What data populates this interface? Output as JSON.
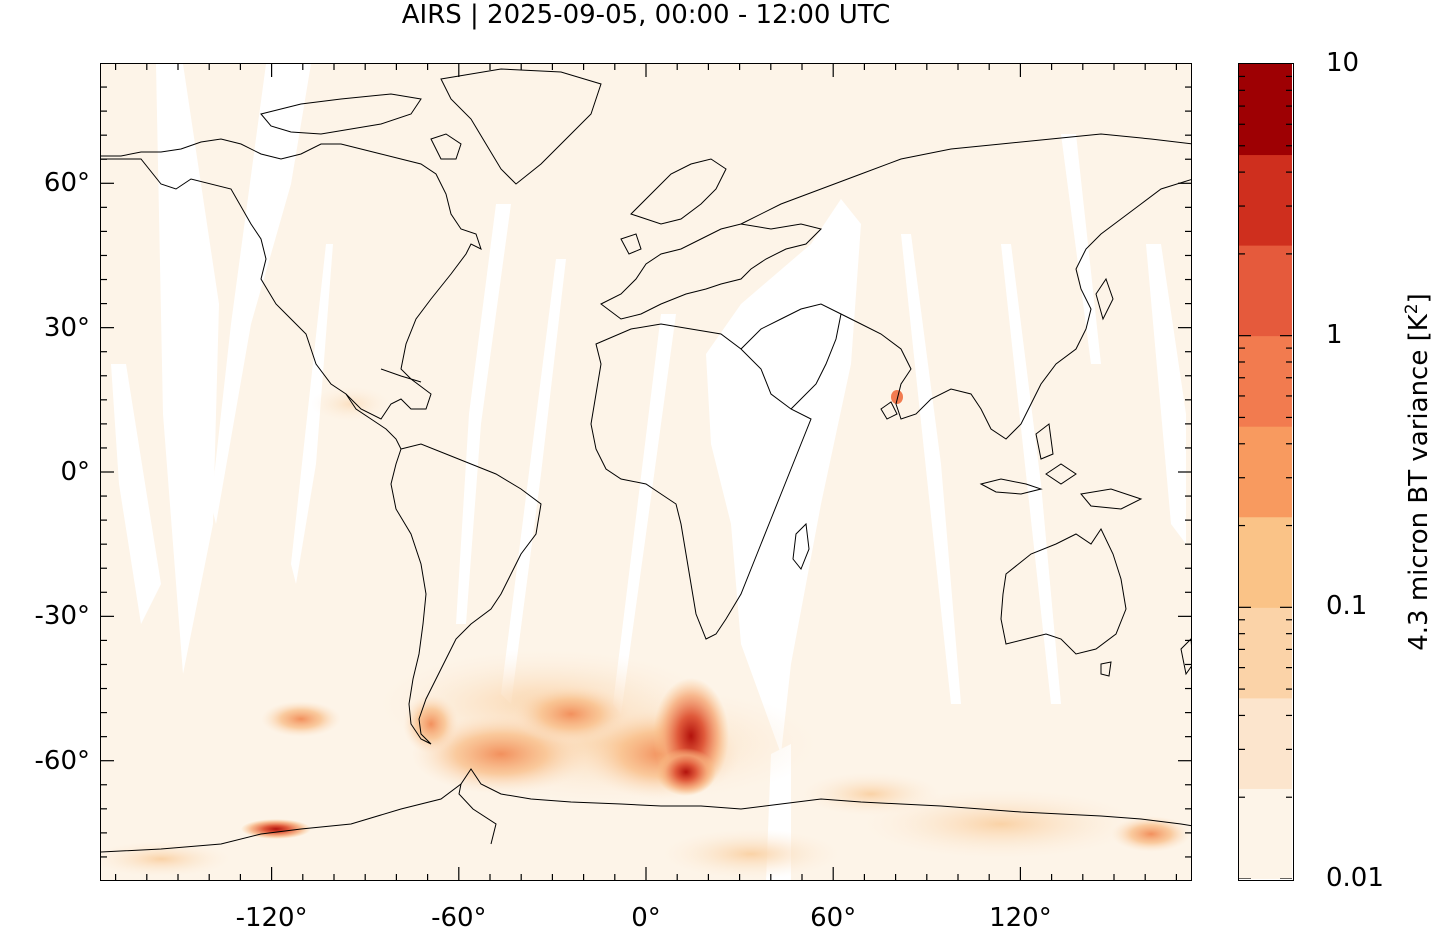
{
  "title": "AIRS | 2025-09-05, 00:00 - 12:00 UTC",
  "map": {
    "projection": "equirectangular",
    "lon_range": [
      -175,
      175
    ],
    "lat_range": [
      -85,
      85
    ],
    "y_ticks": [
      {
        "value": 60,
        "label": "60°"
      },
      {
        "value": 30,
        "label": "30°"
      },
      {
        "value": 0,
        "label": "0°"
      },
      {
        "value": -30,
        "label": "-30°"
      },
      {
        "value": -60,
        "label": "-60°"
      }
    ],
    "x_ticks": [
      {
        "value": -120,
        "label": "-120°"
      },
      {
        "value": -60,
        "label": "-60°"
      },
      {
        "value": 0,
        "label": "0°"
      },
      {
        "value": 60,
        "label": "60°"
      },
      {
        "value": 120,
        "label": "120°"
      }
    ],
    "background_color": "#fdf4e8",
    "coastline_color": "#000000",
    "hotspots": [
      {
        "lon": 14,
        "lat": -52,
        "level": 6
      },
      {
        "lon": 12,
        "lat": -58,
        "level": 5
      },
      {
        "lon": -68,
        "lat": -53,
        "level": 4
      },
      {
        "lon": -117,
        "lat": -73,
        "level": 4
      },
      {
        "lon": 80,
        "lat": 16,
        "level": 3
      }
    ]
  },
  "colorbar": {
    "title": "4.3 micron BT variance [K",
    "title_superscript": "2",
    "title_suffix": "]",
    "scale": "log",
    "tick_labels": [
      {
        "value": 10,
        "label": "10"
      },
      {
        "value": 1,
        "label": "1"
      },
      {
        "value": 0.1,
        "label": "0.1"
      },
      {
        "value": 0.01,
        "label": "0.01"
      }
    ],
    "colors": [
      "#fdf4e8",
      "#fce5cd",
      "#fbd3a8",
      "#fac387",
      "#f89a5f",
      "#f27b4f",
      "#e55a3c",
      "#cf2f1e",
      "#9e0003"
    ]
  }
}
